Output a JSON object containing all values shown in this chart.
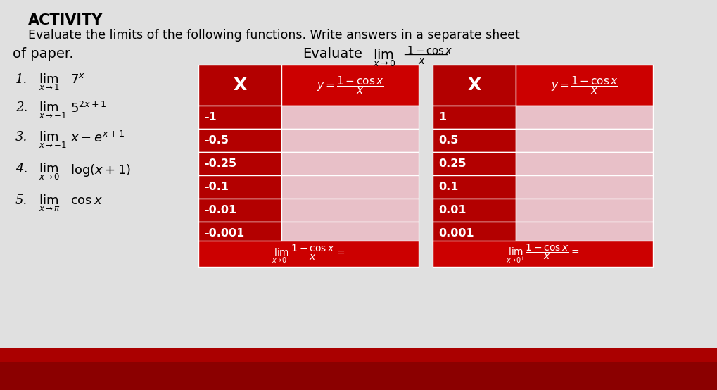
{
  "background_color": "#e0e0e0",
  "red_dark": "#b30000",
  "red_mid": "#cc0000",
  "red_light": "#e8c0c8",
  "bottom_dark": "#8b0000",
  "white": "#ffffff",
  "left_table_x_values": [
    "-1",
    "-0.5",
    "-0.25",
    "-0.1",
    "-0.01",
    "-0.001"
  ],
  "right_table_x_values": [
    "1",
    "0.5",
    "0.25",
    "0.1",
    "0.01",
    "0.001"
  ]
}
